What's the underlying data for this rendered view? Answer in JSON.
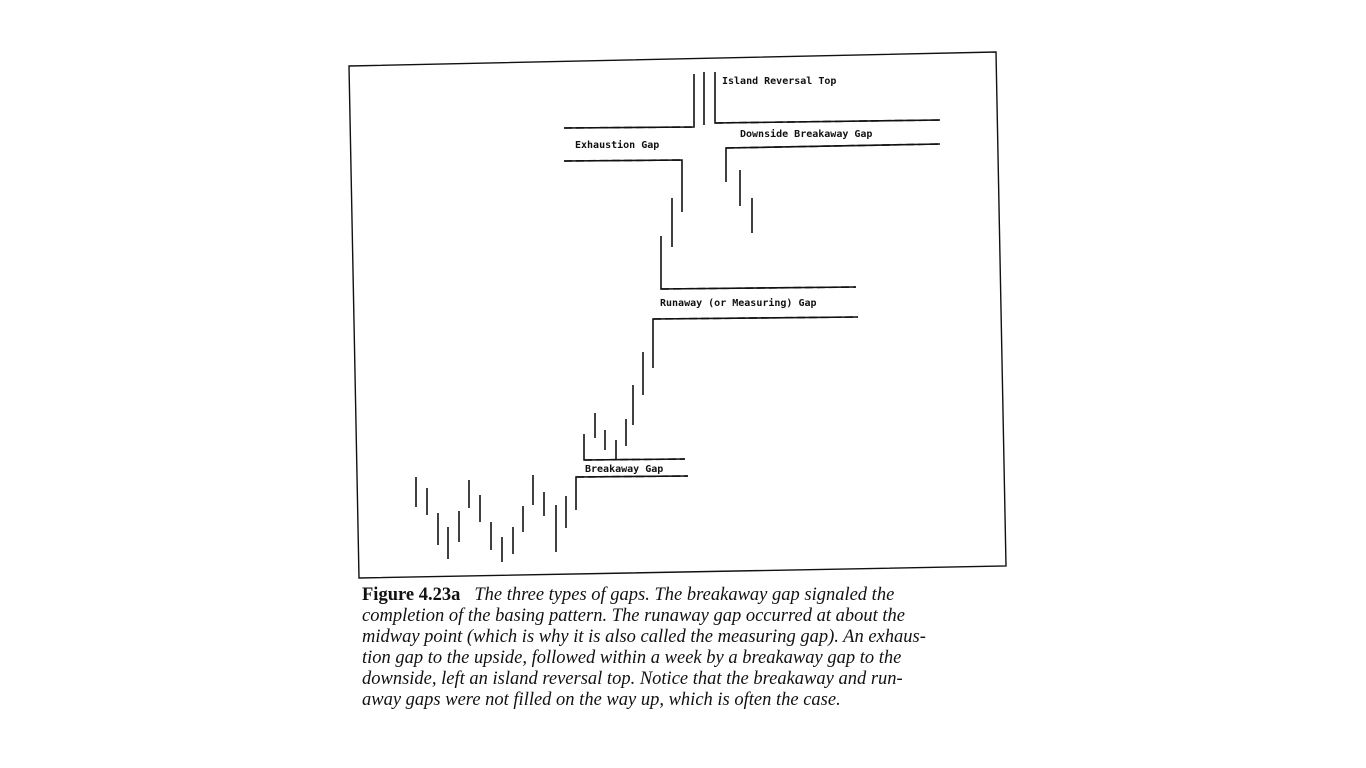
{
  "figure": {
    "labels": {
      "island_reversal_top": "Island Reversal Top",
      "downside_breakaway_gap": "Downside Breakaway Gap",
      "exhaustion_gap": "Exhaustion Gap",
      "runaway_gap": "Runaway (or Measuring) Gap",
      "breakaway_gap": "Breakaway Gap"
    },
    "caption": {
      "number": "Figure 4.23a",
      "lines": [
        "The three types of gaps. The breakaway gap signaled the",
        "completion of the basing pattern. The runaway gap occurred at about the",
        "midway point (which is why it is also called the measuring gap). An exhaus-",
        "tion gap to the upside, followed within a week by a breakaway gap to the",
        "downside, left an island reversal top. Notice that the breakaway and run-",
        "away gaps were not filled on the way up, which is often the case."
      ]
    }
  }
}
